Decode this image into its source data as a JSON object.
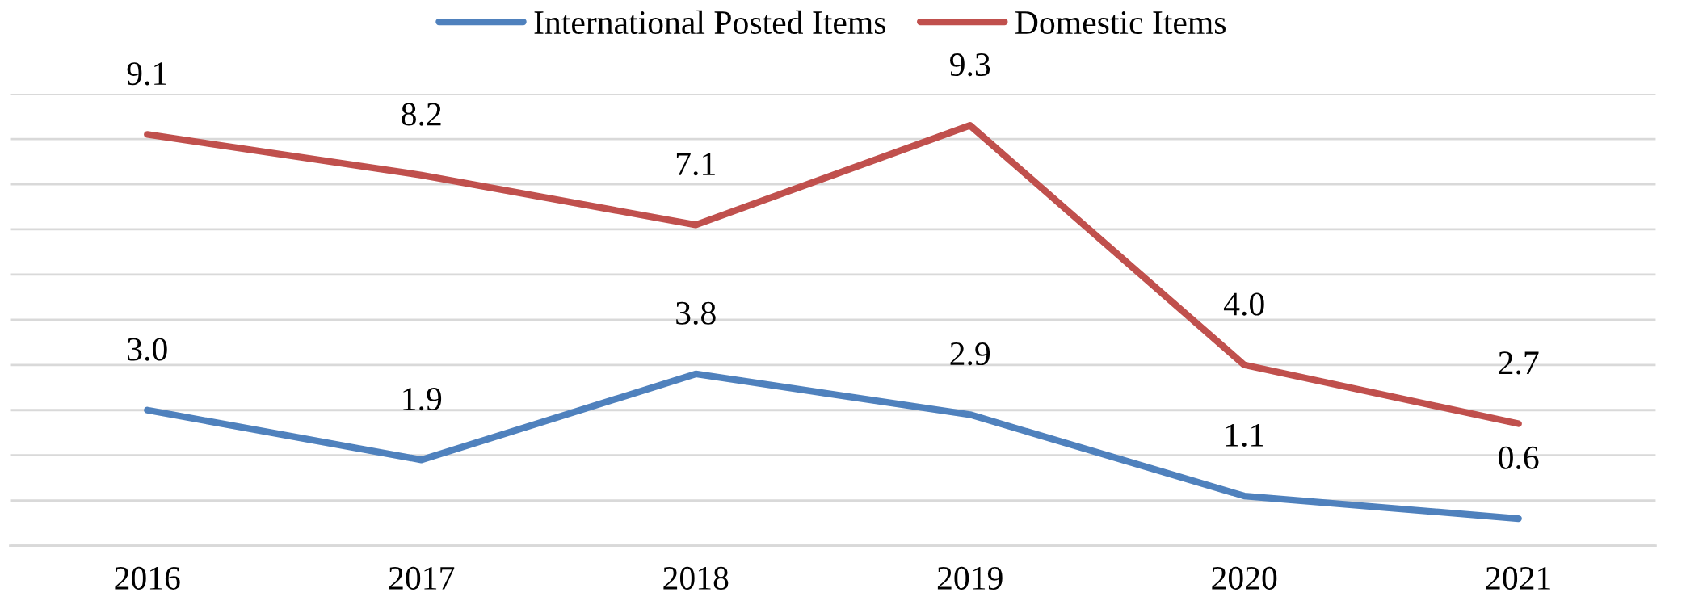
{
  "chart_data": {
    "type": "line",
    "categories": [
      "2016",
      "2017",
      "2018",
      "2019",
      "2020",
      "2021"
    ],
    "series": [
      {
        "name": "International Posted Items",
        "color": "#4f81bd",
        "values": [
          3.0,
          1.9,
          3.8,
          2.9,
          1.1,
          0.6
        ],
        "value_labels": [
          "3.0",
          "1.9",
          "3.8",
          "2.9",
          "1.1",
          "0.6"
        ]
      },
      {
        "name": "Domestic Items",
        "color": "#c0504d",
        "values": [
          9.1,
          8.2,
          7.1,
          9.3,
          4.0,
          2.7
        ],
        "value_labels": [
          "9.1",
          "8.2",
          "7.1",
          "9.3",
          "4.0",
          "2.7"
        ]
      }
    ],
    "ylim": [
      0,
      10
    ],
    "yticks": [
      {
        "value": 0,
        "label": null
      },
      {
        "value": 1,
        "label": null
      },
      {
        "value": 2,
        "label": null
      },
      {
        "value": 3,
        "label": null
      },
      {
        "value": 4,
        "label": null
      },
      {
        "value": 5,
        "label": null
      },
      {
        "value": 6,
        "label": null
      },
      {
        "value": 7,
        "label": null
      },
      {
        "value": 8,
        "label": null
      },
      {
        "value": 9,
        "label": null
      },
      {
        "value": 10,
        "label": null
      }
    ],
    "tick_labels": "x",
    "grid": "y",
    "legend": "top",
    "marker": "none",
    "line_style": "solid"
  }
}
